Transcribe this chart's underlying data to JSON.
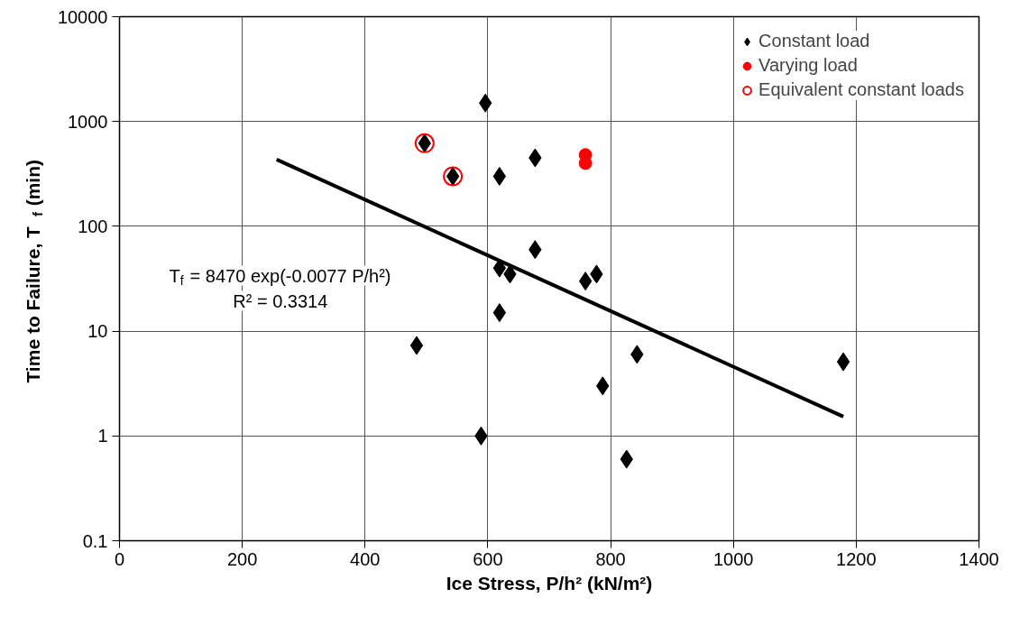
{
  "chart_data": {
    "type": "scatter",
    "xlabel": "Ice Stress, P/h² (kN/m²)",
    "ylabel": "Time to Failure, T$_{f}$ (min)",
    "xlim": [
      0,
      1400
    ],
    "xticks": [
      0,
      200,
      400,
      600,
      800,
      1000,
      1200,
      1400
    ],
    "ylim": [
      0.1,
      10000
    ],
    "yticks": [
      {
        "value": 0.1,
        "label": "0.1"
      },
      1,
      10,
      100,
      1000,
      10000
    ],
    "log": "y",
    "grid": true,
    "legend": "top right",
    "annotations": [
      "T$_{f}$ = 8470 exp(-0.0077 P/h²)",
      "R² = 0.3314"
    ],
    "series": [
      {
        "name": "Constant load",
        "marker": "diamond",
        "color": "#000000",
        "x": [
          497,
          543,
          596,
          619,
          677,
          677,
          619,
          636,
          759,
          777,
          619,
          484,
          843,
          787,
          589,
          826,
          1179
        ],
        "values": [
          620,
          300,
          1500,
          300,
          450,
          60,
          40,
          35,
          30,
          35,
          15,
          7.3,
          6.0,
          3.0,
          1.0,
          0.6,
          5.1
        ]
      },
      {
        "name": "Varying load",
        "marker": "circle",
        "color": "#ff0000",
        "x": [
          759,
          759
        ],
        "values": [
          480,
          400
        ]
      },
      {
        "name": "Equivalent constant loads",
        "marker": "circle",
        "color": "#ff0000",
        "x": [
          497,
          543
        ],
        "values": [
          620,
          300
        ]
      },
      {
        "type": "line",
        "color": "#000000",
        "line_style": "solid",
        "x": [
          256,
          1179
        ],
        "values": [
          433,
          1.53
        ]
      }
    ]
  }
}
